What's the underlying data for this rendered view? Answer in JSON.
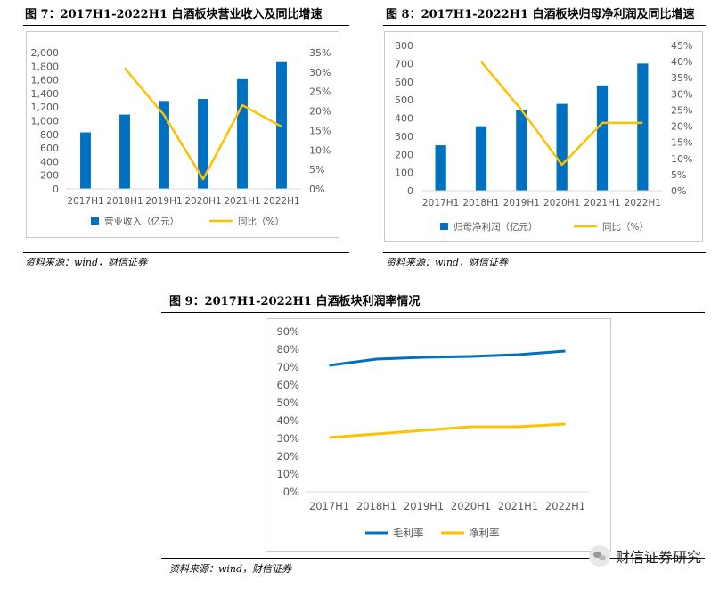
{
  "figures": {
    "fig7": {
      "title": "图 7：2017H1-2022H1 白酒板块营业收入及同比增速",
      "source": "资料来源：wind，财信证券"
    },
    "fig8": {
      "title": "图 8：2017H1-2022H1 白酒板块归母净利润及同比增速",
      "source": "资料来源：wind，财信证券"
    },
    "fig9": {
      "title": "图 9：2017H1-2022H1 白酒板块利润率情况",
      "source": "资料来源：wind，财信证券"
    }
  },
  "watermark": {
    "text": "财信证券研究",
    "icon": "wechat-icon"
  },
  "chart_data": [
    {
      "type": "bar+line",
      "categories": [
        "2017H1",
        "2018H1",
        "2019H1",
        "2020H1",
        "2021H1",
        "2022H1"
      ],
      "series": [
        {
          "name": "营业收入（亿元）",
          "type": "bar",
          "axis": "left",
          "color": "#0070C0",
          "values": [
            830,
            1090,
            1290,
            1320,
            1610,
            1860
          ]
        },
        {
          "name": "同比（%）",
          "type": "line",
          "axis": "right",
          "color": "#FFC000",
          "values": [
            null,
            31,
            19,
            2.5,
            21.5,
            16
          ]
        }
      ],
      "left_axis": {
        "min": 0,
        "max": 2000,
        "step": 200,
        "ticks": [
          "0",
          "200",
          "400",
          "600",
          "800",
          "1,000",
          "1,200",
          "1,400",
          "1,600",
          "1,800",
          "2,000"
        ]
      },
      "right_axis": {
        "min": 0,
        "max": 35,
        "step": 5,
        "ticks": [
          "0%",
          "5%",
          "10%",
          "15%",
          "20%",
          "25%",
          "30%",
          "35%"
        ]
      },
      "legend": "bottom",
      "grid": false
    },
    {
      "type": "bar+line",
      "categories": [
        "2017H1",
        "2018H1",
        "2019H1",
        "2020H1",
        "2021H1",
        "2022H1"
      ],
      "series": [
        {
          "name": "归母净利润（亿元）",
          "type": "bar",
          "axis": "left",
          "color": "#0070C0",
          "values": [
            250,
            355,
            445,
            478,
            580,
            700
          ]
        },
        {
          "name": "同比（%）",
          "type": "line",
          "axis": "right",
          "color": "#FFC000",
          "values": [
            null,
            40,
            25,
            8,
            21,
            21
          ]
        }
      ],
      "left_axis": {
        "min": 0,
        "max": 800,
        "step": 100,
        "ticks": [
          "0",
          "100",
          "200",
          "300",
          "400",
          "500",
          "600",
          "700",
          "800"
        ]
      },
      "right_axis": {
        "min": 0,
        "max": 45,
        "step": 5,
        "ticks": [
          "0%",
          "5%",
          "10%",
          "15%",
          "20%",
          "25%",
          "30%",
          "35%",
          "40%",
          "45%"
        ]
      },
      "legend": "bottom",
      "grid": false
    },
    {
      "type": "line",
      "categories": [
        "2017H1",
        "2018H1",
        "2019H1",
        "2020H1",
        "2021H1",
        "2022H1"
      ],
      "series": [
        {
          "name": "毛利率",
          "color": "#0070C0",
          "values": [
            71,
            74.5,
            75.5,
            76,
            77,
            79
          ]
        },
        {
          "name": "净利率",
          "color": "#FFC000",
          "values": [
            30.5,
            32.5,
            34.5,
            36.5,
            36.5,
            38
          ]
        }
      ],
      "y_axis": {
        "min": 0,
        "max": 90,
        "step": 10,
        "ticks": [
          "0%",
          "10%",
          "20%",
          "30%",
          "40%",
          "50%",
          "60%",
          "70%",
          "80%",
          "90%"
        ]
      },
      "legend": "bottom",
      "grid": false
    }
  ]
}
